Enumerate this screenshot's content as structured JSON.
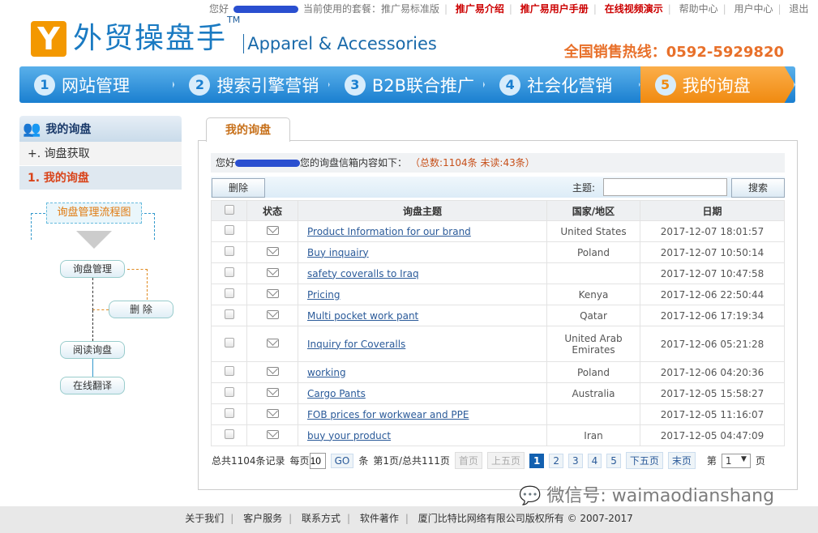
{
  "topbar": {
    "greeting": "您好",
    "plan": "当前使用的套餐：推广易标准版",
    "links": [
      "推广易介绍",
      "推广易用户手册",
      "在线视频演示",
      "帮助中心",
      "用户中心",
      "退出"
    ]
  },
  "logo": {
    "mark": "Y",
    "cn": "外贸操盘手",
    "tm": "TM",
    "en": "Apparel & Accessories"
  },
  "hotline": "全国销售热线：0592-5929820",
  "nav": [
    {
      "num": "1",
      "label": "网站管理"
    },
    {
      "num": "2",
      "label": "搜索引擎营销"
    },
    {
      "num": "3",
      "label": "B2B联合推广"
    },
    {
      "num": "4",
      "label": "社会化营销"
    },
    {
      "num": "5",
      "label": "我的询盘"
    }
  ],
  "sidebar": {
    "title": "我的询盘",
    "items": [
      "+. 询盘获取",
      "1. 我的询盘"
    ],
    "flow": {
      "title": "询盘管理流程图",
      "manage": "询盘管理",
      "delete": "删  除",
      "read": "阅读询盘",
      "translate": "在线翻译"
    }
  },
  "tab": "我的询盘",
  "greet": {
    "prefix": "您好",
    "suffix": "您的询盘信箱内容如下：",
    "counts": "（总数:1104条   未读:43条）"
  },
  "toolbar": {
    "delete": "删除",
    "subject_label": "主题:",
    "subject_value": "",
    "search": "搜索"
  },
  "table": {
    "headers": [
      "状态",
      "询盘主题",
      "国家/地区",
      "日期"
    ],
    "rows": [
      {
        "subject": "Product Information for our brand",
        "country": "United States",
        "date": "2017-12-07 18:01:57"
      },
      {
        "subject": "Buy inquairy",
        "country": "Poland",
        "date": "2017-12-07 10:50:14"
      },
      {
        "subject": "safety coveralls to Iraq",
        "country": "",
        "date": "2017-12-07 10:47:58"
      },
      {
        "subject": "Pricing",
        "country": "Kenya",
        "date": "2017-12-06 22:50:44"
      },
      {
        "subject": "Multi pocket work pant",
        "country": "Qatar",
        "date": "2017-12-06 17:19:34"
      },
      {
        "subject": "Inquiry for Coveralls",
        "country": "United Arab Emirates",
        "date": "2017-12-06 05:21:28"
      },
      {
        "subject": "working",
        "country": "Poland",
        "date": "2017-12-06 04:20:36"
      },
      {
        "subject": "Cargo Pants",
        "country": "Australia",
        "date": "2017-12-05 15:58:27"
      },
      {
        "subject": "FOB prices for workwear and PPE",
        "country": "",
        "date": "2017-12-05 11:16:07"
      },
      {
        "subject": "buy your product",
        "country": "Iran",
        "date": "2017-12-05 04:47:09"
      }
    ]
  },
  "pager": {
    "total": "总共1104条记录",
    "per_page_label": "每页",
    "per_page": "10",
    "go": "GO",
    "unit": "条",
    "page_info": "第1页/总共111页",
    "first": "首页",
    "prev5": "上五页",
    "pages": [
      "1",
      "2",
      "3",
      "4",
      "5"
    ],
    "next5": "下五页",
    "last": "末页",
    "jump_prefix": "第",
    "jump_value": "1",
    "jump_suffix": "页"
  },
  "footer": [
    "关于我们",
    "客户服务",
    "联系方式",
    "软件著作",
    "厦门比特比网络有限公司版权所有 © 2007-2017"
  ],
  "watermark": "微信号: waimaodianshang"
}
